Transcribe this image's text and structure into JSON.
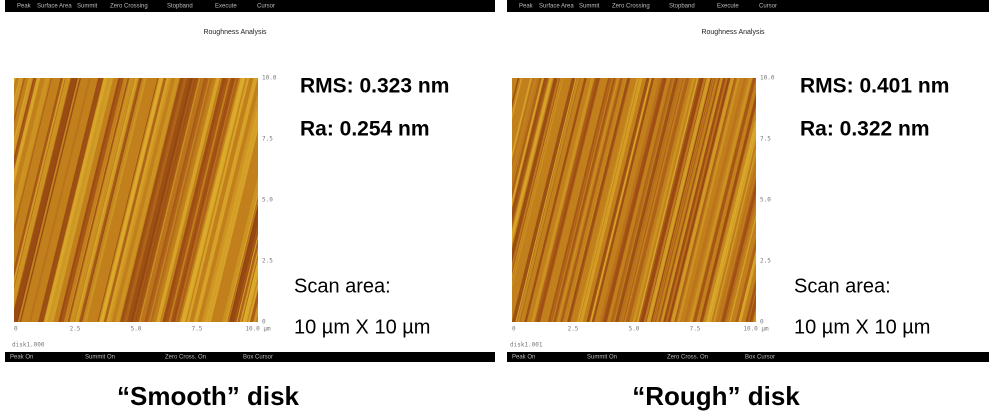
{
  "panels": [
    {
      "menu": [
        "Peak",
        "Surface Area",
        "Summit",
        "Zero Crossing",
        "Stopband",
        "Execute",
        "Cursor"
      ],
      "title": "Roughness Analysis",
      "y_axis_labels": [
        "10.0",
        "7.5",
        "5.0",
        "2.5",
        "0"
      ],
      "x_axis_labels": [
        "0",
        "2.5",
        "5.0",
        "7.5",
        "10.0 µm"
      ],
      "file": "disk1.000",
      "status_bar": [
        "Peak On",
        "Summit On",
        "Zero Cross. On",
        "Box Cursor"
      ],
      "rms": "RMS: 0.323 nm",
      "ra": "Ra: 0.254 nm",
      "scan_area_label": "Scan area:",
      "scan_area": "10 µm X 10 µm",
      "caption": "“Smooth” disk"
    },
    {
      "menu": [
        "Peak",
        "Surface Area",
        "Summit",
        "Zero Crossing",
        "Stopband",
        "Execute",
        "Cursor"
      ],
      "title": "Roughness Analysis",
      "y_axis_labels": [
        "10.0",
        "7.5",
        "5.0",
        "2.5",
        "0"
      ],
      "x_axis_labels": [
        "0",
        "2.5",
        "5.0",
        "7.5",
        "10.0 µm"
      ],
      "file": "disk1.001",
      "status_bar": [
        "Peak On",
        "Summit On",
        "Zero Cross. On",
        "Box Cursor"
      ],
      "rms": "RMS: 0.401 nm",
      "ra": "Ra: 0.322 nm",
      "scan_area_label": "Scan area:",
      "scan_area": "10 µm X 10 µm",
      "caption": "“Rough” disk"
    }
  ]
}
